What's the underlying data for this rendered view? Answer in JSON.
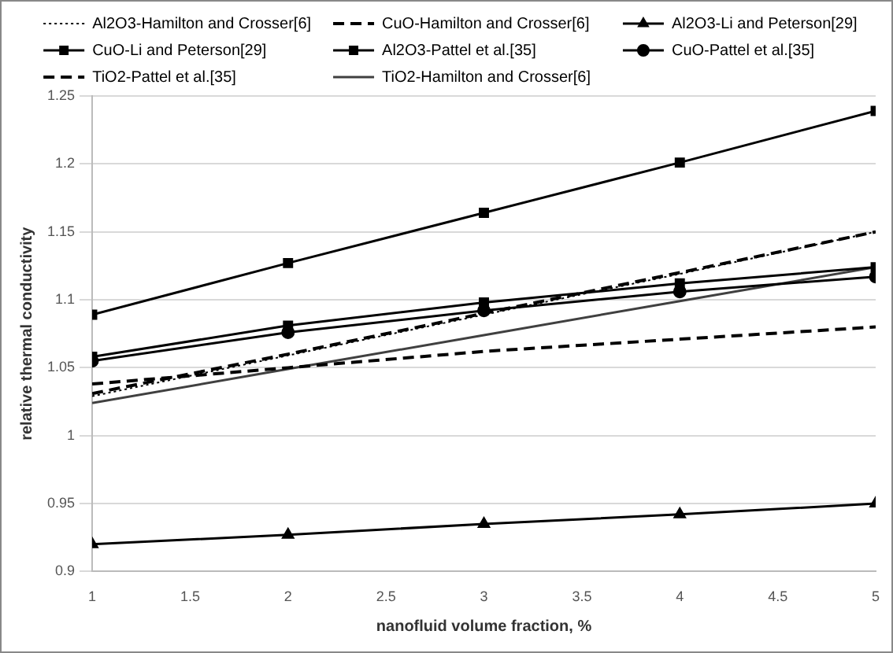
{
  "chart_data": {
    "type": "line",
    "xlabel": "nanofluid volume fraction, %",
    "ylabel": "relative thermal conductivity",
    "x": [
      1,
      2,
      3,
      4,
      5
    ],
    "xlim": [
      1,
      5
    ],
    "xticks": [
      1,
      1.5,
      2,
      2.5,
      3,
      3.5,
      4,
      4.5,
      5
    ],
    "ylim": [
      0.9,
      1.25
    ],
    "yticks": [
      0.9,
      0.95,
      1,
      1.05,
      1.1,
      1.15,
      1.2,
      1.25
    ],
    "grid": "y",
    "legend": "top",
    "series": [
      {
        "name": "Al2O3-Hamilton and Crosser[6]",
        "color": "#000000",
        "line_style": "dotted",
        "marker": "none",
        "values": [
          1.029,
          1.059,
          1.089,
          1.119,
          1.15
        ]
      },
      {
        "name": "CuO-Hamilton and Crosser[6]",
        "color": "#000000",
        "line_style": "dashed",
        "marker": "none",
        "values": [
          1.031,
          1.06,
          1.09,
          1.12,
          1.15
        ]
      },
      {
        "name": "Al2O3-Li and Peterson[29]",
        "color": "#000000",
        "line_style": "solid",
        "marker": "triangle",
        "values": [
          0.92,
          0.927,
          0.935,
          0.942,
          0.95
        ]
      },
      {
        "name": "CuO-Li and Peterson[29]",
        "color": "#000000",
        "line_style": "solid",
        "marker": "square",
        "values": [
          1.089,
          1.127,
          1.164,
          1.201,
          1.239
        ]
      },
      {
        "name": "Al2O3-Pattel et al.[35]",
        "color": "#000000",
        "line_style": "solid",
        "marker": "square",
        "values": [
          1.058,
          1.081,
          1.098,
          1.112,
          1.124
        ]
      },
      {
        "name": "CuO-Pattel et al.[35]",
        "color": "#000000",
        "line_style": "solid",
        "marker": "circle",
        "values": [
          1.055,
          1.076,
          1.092,
          1.106,
          1.117
        ]
      },
      {
        "name": "TiO2-Pattel et al.[35]",
        "color": "#000000",
        "line_style": "dashed",
        "marker": "none",
        "values": [
          1.038,
          1.05,
          1.062,
          1.071,
          1.08
        ]
      },
      {
        "name": "TiO2-Hamilton and Crosser[6]",
        "color": "#404040",
        "line_style": "solid",
        "marker": "none",
        "values": [
          1.024,
          1.049,
          1.074,
          1.099,
          1.124
        ]
      }
    ]
  }
}
